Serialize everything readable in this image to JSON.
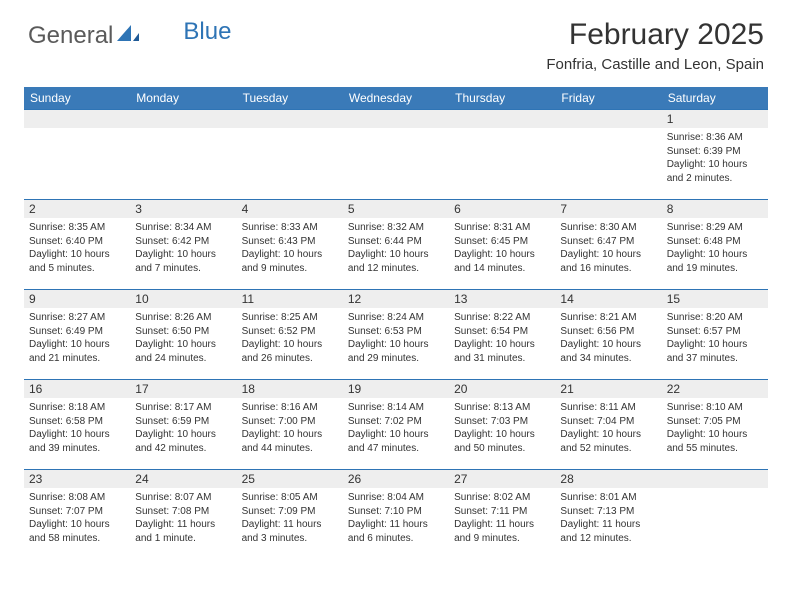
{
  "logo": {
    "text1": "General",
    "text2": "Blue"
  },
  "title": "February 2025",
  "location": "Fonfria, Castille and Leon, Spain",
  "colors": {
    "header_bg": "#3a7ab8",
    "header_text": "#ffffff",
    "daynum_bg": "#eeeeee",
    "cell_border": "#2e74b5",
    "text": "#333333",
    "logo_gray": "#5a5a5a",
    "logo_blue": "#2e74b5"
  },
  "weekdays": [
    "Sunday",
    "Monday",
    "Tuesday",
    "Wednesday",
    "Thursday",
    "Friday",
    "Saturday"
  ],
  "weeks": [
    [
      null,
      null,
      null,
      null,
      null,
      null,
      {
        "n": "1",
        "sr": "Sunrise: 8:36 AM",
        "ss": "Sunset: 6:39 PM",
        "dl1": "Daylight: 10 hours",
        "dl2": "and 2 minutes."
      }
    ],
    [
      {
        "n": "2",
        "sr": "Sunrise: 8:35 AM",
        "ss": "Sunset: 6:40 PM",
        "dl1": "Daylight: 10 hours",
        "dl2": "and 5 minutes."
      },
      {
        "n": "3",
        "sr": "Sunrise: 8:34 AM",
        "ss": "Sunset: 6:42 PM",
        "dl1": "Daylight: 10 hours",
        "dl2": "and 7 minutes."
      },
      {
        "n": "4",
        "sr": "Sunrise: 8:33 AM",
        "ss": "Sunset: 6:43 PM",
        "dl1": "Daylight: 10 hours",
        "dl2": "and 9 minutes."
      },
      {
        "n": "5",
        "sr": "Sunrise: 8:32 AM",
        "ss": "Sunset: 6:44 PM",
        "dl1": "Daylight: 10 hours",
        "dl2": "and 12 minutes."
      },
      {
        "n": "6",
        "sr": "Sunrise: 8:31 AM",
        "ss": "Sunset: 6:45 PM",
        "dl1": "Daylight: 10 hours",
        "dl2": "and 14 minutes."
      },
      {
        "n": "7",
        "sr": "Sunrise: 8:30 AM",
        "ss": "Sunset: 6:47 PM",
        "dl1": "Daylight: 10 hours",
        "dl2": "and 16 minutes."
      },
      {
        "n": "8",
        "sr": "Sunrise: 8:29 AM",
        "ss": "Sunset: 6:48 PM",
        "dl1": "Daylight: 10 hours",
        "dl2": "and 19 minutes."
      }
    ],
    [
      {
        "n": "9",
        "sr": "Sunrise: 8:27 AM",
        "ss": "Sunset: 6:49 PM",
        "dl1": "Daylight: 10 hours",
        "dl2": "and 21 minutes."
      },
      {
        "n": "10",
        "sr": "Sunrise: 8:26 AM",
        "ss": "Sunset: 6:50 PM",
        "dl1": "Daylight: 10 hours",
        "dl2": "and 24 minutes."
      },
      {
        "n": "11",
        "sr": "Sunrise: 8:25 AM",
        "ss": "Sunset: 6:52 PM",
        "dl1": "Daylight: 10 hours",
        "dl2": "and 26 minutes."
      },
      {
        "n": "12",
        "sr": "Sunrise: 8:24 AM",
        "ss": "Sunset: 6:53 PM",
        "dl1": "Daylight: 10 hours",
        "dl2": "and 29 minutes."
      },
      {
        "n": "13",
        "sr": "Sunrise: 8:22 AM",
        "ss": "Sunset: 6:54 PM",
        "dl1": "Daylight: 10 hours",
        "dl2": "and 31 minutes."
      },
      {
        "n": "14",
        "sr": "Sunrise: 8:21 AM",
        "ss": "Sunset: 6:56 PM",
        "dl1": "Daylight: 10 hours",
        "dl2": "and 34 minutes."
      },
      {
        "n": "15",
        "sr": "Sunrise: 8:20 AM",
        "ss": "Sunset: 6:57 PM",
        "dl1": "Daylight: 10 hours",
        "dl2": "and 37 minutes."
      }
    ],
    [
      {
        "n": "16",
        "sr": "Sunrise: 8:18 AM",
        "ss": "Sunset: 6:58 PM",
        "dl1": "Daylight: 10 hours",
        "dl2": "and 39 minutes."
      },
      {
        "n": "17",
        "sr": "Sunrise: 8:17 AM",
        "ss": "Sunset: 6:59 PM",
        "dl1": "Daylight: 10 hours",
        "dl2": "and 42 minutes."
      },
      {
        "n": "18",
        "sr": "Sunrise: 8:16 AM",
        "ss": "Sunset: 7:00 PM",
        "dl1": "Daylight: 10 hours",
        "dl2": "and 44 minutes."
      },
      {
        "n": "19",
        "sr": "Sunrise: 8:14 AM",
        "ss": "Sunset: 7:02 PM",
        "dl1": "Daylight: 10 hours",
        "dl2": "and 47 minutes."
      },
      {
        "n": "20",
        "sr": "Sunrise: 8:13 AM",
        "ss": "Sunset: 7:03 PM",
        "dl1": "Daylight: 10 hours",
        "dl2": "and 50 minutes."
      },
      {
        "n": "21",
        "sr": "Sunrise: 8:11 AM",
        "ss": "Sunset: 7:04 PM",
        "dl1": "Daylight: 10 hours",
        "dl2": "and 52 minutes."
      },
      {
        "n": "22",
        "sr": "Sunrise: 8:10 AM",
        "ss": "Sunset: 7:05 PM",
        "dl1": "Daylight: 10 hours",
        "dl2": "and 55 minutes."
      }
    ],
    [
      {
        "n": "23",
        "sr": "Sunrise: 8:08 AM",
        "ss": "Sunset: 7:07 PM",
        "dl1": "Daylight: 10 hours",
        "dl2": "and 58 minutes."
      },
      {
        "n": "24",
        "sr": "Sunrise: 8:07 AM",
        "ss": "Sunset: 7:08 PM",
        "dl1": "Daylight: 11 hours",
        "dl2": "and 1 minute."
      },
      {
        "n": "25",
        "sr": "Sunrise: 8:05 AM",
        "ss": "Sunset: 7:09 PM",
        "dl1": "Daylight: 11 hours",
        "dl2": "and 3 minutes."
      },
      {
        "n": "26",
        "sr": "Sunrise: 8:04 AM",
        "ss": "Sunset: 7:10 PM",
        "dl1": "Daylight: 11 hours",
        "dl2": "and 6 minutes."
      },
      {
        "n": "27",
        "sr": "Sunrise: 8:02 AM",
        "ss": "Sunset: 7:11 PM",
        "dl1": "Daylight: 11 hours",
        "dl2": "and 9 minutes."
      },
      {
        "n": "28",
        "sr": "Sunrise: 8:01 AM",
        "ss": "Sunset: 7:13 PM",
        "dl1": "Daylight: 11 hours",
        "dl2": "and 12 minutes."
      },
      null
    ]
  ]
}
